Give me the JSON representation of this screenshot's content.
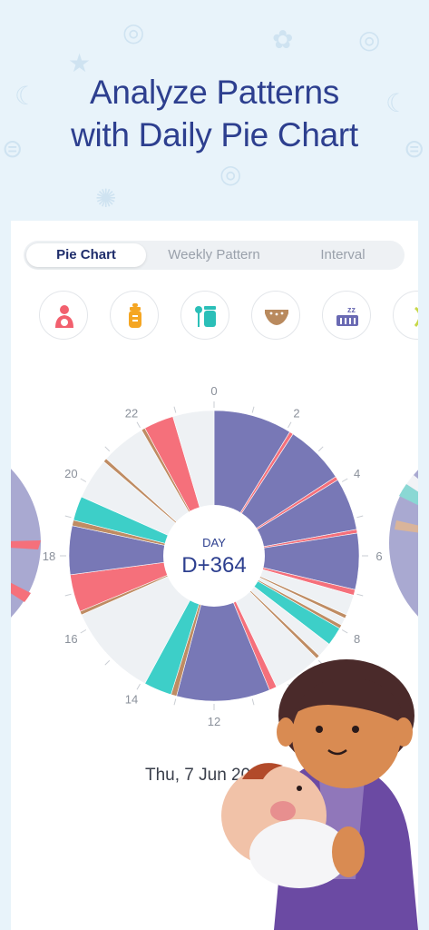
{
  "headline": {
    "line1": "Analyze Patterns",
    "line2": "with Daily Pie Chart"
  },
  "tabs": [
    {
      "label": "Pie Chart",
      "active": true
    },
    {
      "label": "Weekly Pattern",
      "active": false
    },
    {
      "label": "Interval",
      "active": false
    }
  ],
  "categories": [
    {
      "icon": "breastfeeding-icon",
      "color": "#f2606e"
    },
    {
      "icon": "bottle-icon",
      "color": "#f5a623"
    },
    {
      "icon": "baby-food-icon",
      "color": "#2bbfb8"
    },
    {
      "icon": "diaper-icon",
      "color": "#b98a5e"
    },
    {
      "icon": "sleep-icon",
      "color": "#6a6ab3"
    },
    {
      "icon": "more-category-icon",
      "color": "#c8d84a"
    }
  ],
  "chart_data": {
    "type": "pie",
    "center_caption": "DAY",
    "center_value": "D+364",
    "hour_labels": [
      "0",
      "2",
      "4",
      "6",
      "8",
      "10",
      "12",
      "14",
      "16",
      "18",
      "20",
      "22"
    ],
    "colors": {
      "sleep": "#7878b6",
      "feeding": "#f5707b",
      "food": "#3dcfc8",
      "diaper": "#bf8c63",
      "empty": "#eef1f4"
    },
    "segments": [
      {
        "start": 0.0,
        "end": 2.1,
        "kind": "sleep"
      },
      {
        "start": 2.1,
        "end": 2.2,
        "kind": "feeding"
      },
      {
        "start": 2.2,
        "end": 3.8,
        "kind": "sleep"
      },
      {
        "start": 3.8,
        "end": 3.9,
        "kind": "feeding"
      },
      {
        "start": 3.9,
        "end": 5.3,
        "kind": "sleep"
      },
      {
        "start": 5.3,
        "end": 5.4,
        "kind": "feeding"
      },
      {
        "start": 5.4,
        "end": 6.9,
        "kind": "sleep"
      },
      {
        "start": 6.9,
        "end": 7.05,
        "kind": "feeding"
      },
      {
        "start": 7.05,
        "end": 7.6,
        "kind": "empty"
      },
      {
        "start": 7.6,
        "end": 7.7,
        "kind": "diaper"
      },
      {
        "start": 7.7,
        "end": 7.9,
        "kind": "empty"
      },
      {
        "start": 7.9,
        "end": 8.0,
        "kind": "diaper"
      },
      {
        "start": 8.0,
        "end": 8.5,
        "kind": "food"
      },
      {
        "start": 8.5,
        "end": 8.9,
        "kind": "empty"
      },
      {
        "start": 8.9,
        "end": 9.0,
        "kind": "diaper"
      },
      {
        "start": 9.0,
        "end": 10.3,
        "kind": "empty"
      },
      {
        "start": 10.3,
        "end": 10.5,
        "kind": "feeding"
      },
      {
        "start": 10.5,
        "end": 13.0,
        "kind": "sleep"
      },
      {
        "start": 13.0,
        "end": 13.15,
        "kind": "diaper"
      },
      {
        "start": 13.15,
        "end": 13.9,
        "kind": "food"
      },
      {
        "start": 13.9,
        "end": 16.4,
        "kind": "empty"
      },
      {
        "start": 16.4,
        "end": 16.5,
        "kind": "diaper"
      },
      {
        "start": 16.5,
        "end": 17.5,
        "kind": "feeding"
      },
      {
        "start": 17.5,
        "end": 18.8,
        "kind": "sleep"
      },
      {
        "start": 18.8,
        "end": 18.95,
        "kind": "diaper"
      },
      {
        "start": 18.95,
        "end": 19.6,
        "kind": "food"
      },
      {
        "start": 19.6,
        "end": 20.7,
        "kind": "empty"
      },
      {
        "start": 20.7,
        "end": 20.8,
        "kind": "diaper"
      },
      {
        "start": 20.8,
        "end": 22.0,
        "kind": "empty"
      },
      {
        "start": 22.0,
        "end": 22.1,
        "kind": "diaper"
      },
      {
        "start": 22.1,
        "end": 22.9,
        "kind": "feeding"
      },
      {
        "start": 22.9,
        "end": 24.0,
        "kind": "empty"
      }
    ]
  },
  "date_label": "Thu, 7 Jun 20"
}
